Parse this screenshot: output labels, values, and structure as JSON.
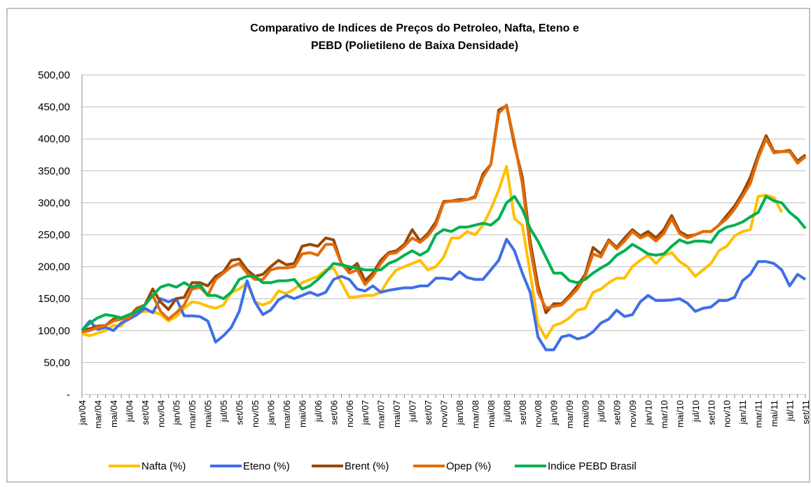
{
  "chart_data": {
    "type": "line",
    "title": "Comparativo de Indices de Preços do Petroleo, Nafta, Eteno e",
    "subtitle": "PEBD (Polietileno de Baixa Densidade)",
    "categories": [
      "jan/04",
      null,
      "mar/04",
      null,
      "mai/04",
      null,
      "jul/04",
      null,
      "set/04",
      null,
      "nov/04",
      null,
      "jan/05",
      null,
      "mar/05",
      null,
      "mai/05",
      null,
      "jul/05",
      null,
      "set/05",
      null,
      "nov/05",
      null,
      "jan/06",
      null,
      "mar/06",
      null,
      "mai/06",
      null,
      "jul/06",
      null,
      "set/06",
      null,
      "nov/06",
      null,
      "jan/07",
      null,
      "mar/07",
      null,
      "mai/07",
      null,
      "jul/07",
      null,
      "set/07",
      null,
      "nov/07",
      null,
      "jan/08",
      null,
      "mar/08",
      null,
      "mai/08",
      null,
      "jul/08",
      null,
      "set/08",
      null,
      "nov/08",
      null,
      "jan/09",
      null,
      "mar/09",
      null,
      "mai/09",
      null,
      "jul/09",
      null,
      "set/09",
      null,
      "nov/09",
      null,
      "jan/10",
      null,
      "mar/10",
      null,
      "mai/10",
      null,
      "jul/10",
      null,
      "set/10",
      null,
      "nov/10",
      null,
      "jan/11",
      null,
      "mar/11",
      null,
      "mai/11",
      null,
      "jul/11",
      null,
      "set/11"
    ],
    "series": [
      {
        "name": "Nafta (%)",
        "color": "#ffc000",
        "values": [
          95,
          92,
          96,
          100,
          108,
          107,
          122,
          128,
          130,
          130,
          125,
          115,
          122,
          135,
          145,
          143,
          138,
          135,
          140,
          160,
          165,
          175,
          145,
          140,
          145,
          162,
          158,
          165,
          175,
          180,
          185,
          195,
          198,
          175,
          152,
          153,
          155,
          155,
          160,
          180,
          195,
          200,
          205,
          210,
          195,
          200,
          215,
          245,
          245,
          255,
          250,
          265,
          290,
          320,
          357,
          275,
          265,
          190,
          110,
          88,
          108,
          112,
          120,
          132,
          135,
          160,
          165,
          175,
          182,
          182,
          200,
          210,
          218,
          205,
          218,
          222,
          208,
          200,
          185,
          195,
          205,
          225,
          232,
          248,
          255,
          258,
          310,
          312,
          308,
          285,
          null,
          null,
          null
        ]
      },
      {
        "name": "Eteno (%)",
        "color": "#3f6fe8",
        "values": [
          100,
          115,
          102,
          105,
          100,
          112,
          118,
          125,
          135,
          128,
          150,
          145,
          150,
          123,
          123,
          122,
          115,
          82,
          92,
          105,
          130,
          178,
          145,
          125,
          132,
          148,
          155,
          150,
          155,
          160,
          155,
          160,
          180,
          185,
          180,
          165,
          162,
          170,
          160,
          163,
          165,
          167,
          167,
          170,
          170,
          182,
          182,
          180,
          192,
          183,
          180,
          180,
          195,
          210,
          243,
          225,
          190,
          160,
          90,
          70,
          70,
          90,
          93,
          87,
          90,
          98,
          112,
          118,
          132,
          122,
          125,
          145,
          155,
          147,
          147,
          148,
          150,
          143,
          130,
          135,
          137,
          147,
          147,
          152,
          178,
          188,
          208,
          208,
          205,
          195,
          170,
          188,
          180
        ]
      },
      {
        "name": "Brent (%)",
        "color": "#984807",
        "values": [
          100,
          103,
          107,
          108,
          118,
          118,
          122,
          135,
          140,
          165,
          145,
          133,
          150,
          152,
          175,
          175,
          170,
          185,
          192,
          210,
          212,
          195,
          185,
          188,
          200,
          210,
          203,
          205,
          232,
          235,
          232,
          245,
          242,
          205,
          195,
          205,
          178,
          190,
          210,
          222,
          225,
          235,
          258,
          240,
          252,
          270,
          302,
          303,
          305,
          305,
          310,
          345,
          360,
          445,
          452,
          390,
          340,
          240,
          170,
          128,
          142,
          142,
          155,
          170,
          188,
          230,
          220,
          242,
          230,
          245,
          258,
          248,
          255,
          245,
          258,
          280,
          255,
          248,
          250,
          255,
          255,
          265,
          280,
          295,
          315,
          340,
          375,
          405,
          380,
          380,
          382,
          365,
          375
        ]
      },
      {
        "name": "Opep (%)",
        "color": "#e36c09",
        "values": [
          98,
          100,
          105,
          108,
          115,
          118,
          120,
          132,
          140,
          155,
          130,
          118,
          128,
          140,
          165,
          168,
          155,
          180,
          190,
          200,
          205,
          190,
          180,
          180,
          195,
          198,
          198,
          200,
          220,
          222,
          218,
          235,
          235,
          205,
          190,
          195,
          172,
          185,
          205,
          220,
          222,
          232,
          245,
          238,
          248,
          265,
          300,
          303,
          303,
          305,
          308,
          340,
          360,
          440,
          453,
          395,
          330,
          230,
          160,
          135,
          138,
          140,
          152,
          165,
          185,
          220,
          215,
          240,
          228,
          240,
          255,
          245,
          250,
          240,
          252,
          275,
          252,
          245,
          250,
          255,
          255,
          265,
          275,
          290,
          310,
          330,
          370,
          400,
          378,
          380,
          380,
          362,
          372
        ]
      },
      {
        "name": "Indice PEBD Brasil",
        "color": "#00b050",
        "values": [
          100,
          112,
          120,
          125,
          123,
          120,
          125,
          130,
          140,
          155,
          168,
          172,
          168,
          175,
          168,
          172,
          155,
          155,
          150,
          160,
          180,
          185,
          185,
          175,
          175,
          178,
          178,
          180,
          165,
          170,
          180,
          192,
          205,
          203,
          200,
          198,
          195,
          195,
          195,
          205,
          210,
          218,
          225,
          218,
          225,
          250,
          258,
          255,
          262,
          262,
          265,
          268,
          265,
          275,
          300,
          310,
          290,
          260,
          240,
          215,
          190,
          190,
          178,
          175,
          180,
          190,
          198,
          205,
          218,
          225,
          235,
          228,
          220,
          218,
          220,
          232,
          242,
          237,
          240,
          240,
          238,
          255,
          262,
          265,
          270,
          278,
          285,
          310,
          303,
          300,
          285,
          275,
          260
        ]
      }
    ],
    "ylim": [
      0,
      500
    ],
    "yticks": [
      {
        "value": 0,
        "label": "-"
      },
      {
        "value": 50,
        "label": "50,00"
      },
      {
        "value": 100,
        "label": "100,00"
      },
      {
        "value": 150,
        "label": "150,00"
      },
      {
        "value": 200,
        "label": "200,00"
      },
      {
        "value": 250,
        "label": "250,00"
      },
      {
        "value": 300,
        "label": "300,00"
      },
      {
        "value": 350,
        "label": "350,00"
      },
      {
        "value": 400,
        "label": "400,00"
      },
      {
        "value": 450,
        "label": "450,00"
      },
      {
        "value": 500,
        "label": "500,00"
      }
    ],
    "grid": true,
    "legend": "bottom"
  }
}
